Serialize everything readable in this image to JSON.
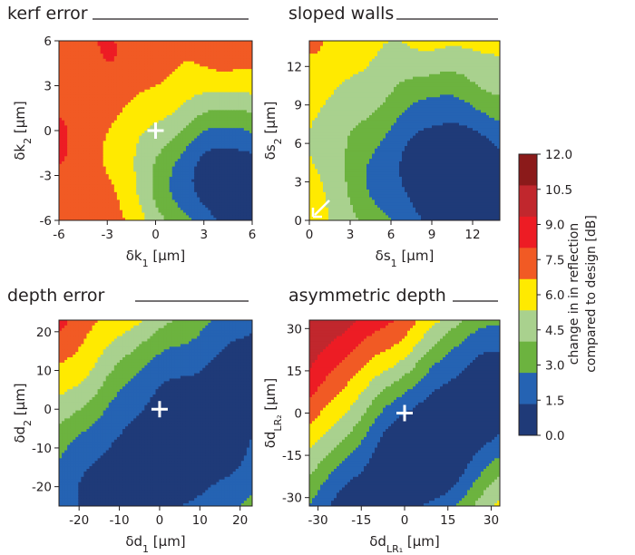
{
  "colorbar": {
    "label_line1": "change in in reflection",
    "label_line2": "compared to design [dB]",
    "levels": [
      "12.0",
      "10.5",
      "9.0",
      "7.5",
      "6.0",
      "4.5",
      "3.0",
      "1.5",
      "0.0"
    ],
    "colors": [
      "#1f3a78",
      "#2563b3",
      "#6cb33f",
      "#a9d18e",
      "#ffea00",
      "#f15a24",
      "#ed1c24",
      "#c1272d",
      "#8b1a1a"
    ],
    "line_color": "#9aa0a6"
  },
  "chart_data": [
    {
      "type": "heatmap",
      "title": "kerf error",
      "xlabel_base": "δk",
      "xlabel_sub": "1",
      "xlabel_unit": " [µm]",
      "ylabel_base": "δk",
      "ylabel_sub": "2",
      "ylabel_unit": " [µm]",
      "xlim": [
        -6,
        6
      ],
      "ylim": [
        -6,
        6
      ],
      "xticks": [
        -6,
        -3,
        0,
        3,
        6
      ],
      "yticks": [
        -6,
        -3,
        0,
        3,
        6
      ],
      "min_marker": {
        "symbol": "+",
        "x": 0,
        "y": 0
      },
      "field": {
        "ax": 0.8,
        "ay": -0.6,
        "b": 0.25,
        "c": 0.35,
        "sat": 9.0,
        "sl": [
          1.2,
          2.3
        ],
        "ramp": 0.45
      }
    },
    {
      "type": "heatmap",
      "title": "sloped walls",
      "xlabel_base": "δs",
      "xlabel_sub": "1",
      "xlabel_unit": " [µm]",
      "ylabel_base": "δs",
      "ylabel_sub": "2",
      "ylabel_unit": " [µm]",
      "xlim": [
        0,
        14
      ],
      "ylim": [
        0,
        14
      ],
      "xticks": [
        0,
        3,
        6,
        9,
        12
      ],
      "yticks": [
        0,
        3,
        6,
        9,
        12
      ],
      "min_marker": {
        "symbol": "↙",
        "x": 0,
        "y": 0
      },
      "field": {
        "ax": 0.5,
        "ay": -0.5,
        "b": 0.3,
        "c": 0.55,
        "sat": 7.8,
        "sl": [
          1.0,
          1.4
        ],
        "ramp": 0.35
      }
    },
    {
      "type": "heatmap",
      "title": "depth error",
      "xlabel_base": "δd",
      "xlabel_sub": "1",
      "xlabel_unit": " [µm]",
      "ylabel_base": "δd",
      "ylabel_sub": "2",
      "ylabel_unit": " [µm]",
      "xlim": [
        -25,
        23
      ],
      "ylim": [
        -25,
        23
      ],
      "xticks": [
        -20,
        -10,
        0,
        10,
        20
      ],
      "yticks": [
        -20,
        -10,
        0,
        10,
        20
      ],
      "min_marker": {
        "symbol": "+",
        "x": 0,
        "y": 0
      },
      "field": {
        "ax": 0.3,
        "ay": -0.3,
        "b": 1.0,
        "c": 0.55,
        "sat": 13.0,
        "sl": [
          1.0,
          1.0
        ],
        "ramp": 0.5
      }
    },
    {
      "type": "heatmap",
      "title": "asymmetric depth",
      "xlabel_base": "δd",
      "xlabel_sub": "LR₁",
      "xlabel_unit": " [µm]",
      "ylabel_base": "δd",
      "ylabel_sub": "LR₂",
      "ylabel_unit": " [µm]",
      "xlim": [
        -33,
        33
      ],
      "ylim": [
        -33,
        33
      ],
      "xticks": [
        -30,
        -15,
        0,
        15,
        30
      ],
      "yticks": [
        -30,
        -15,
        0,
        15,
        30
      ],
      "min_marker": {
        "symbol": "+",
        "x": 0,
        "y": 0
      },
      "field": {
        "ax": 0.32,
        "ay": -0.32,
        "b": 1.0,
        "c": 0.4,
        "sat": 13.0,
        "sl": [
          1.0,
          1.0
        ],
        "ramp": 0.5
      }
    }
  ]
}
